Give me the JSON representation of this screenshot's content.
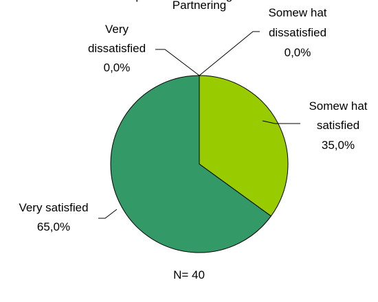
{
  "chart_data": {
    "type": "pie",
    "title": "Hospital/Clinic Nursing Services:\nPartnering",
    "slices": [
      {
        "label": [
          "Very",
          "dissatisfied"
        ],
        "percent_text": "0,0%",
        "value": 0.0,
        "color": "#808080"
      },
      {
        "label": [
          "Somew hat",
          "dissatisfied"
        ],
        "percent_text": "0,0%",
        "value": 0.0,
        "color": "#c0c0c0"
      },
      {
        "label": [
          "Somew hat",
          "satisfied"
        ],
        "percent_text": "35,0%",
        "value": 35.0,
        "color": "#99cc00"
      },
      {
        "label": [
          "Very satisfied"
        ],
        "percent_text": "65,0%",
        "value": 65.0,
        "color": "#339966"
      }
    ],
    "note": "N= 40"
  }
}
